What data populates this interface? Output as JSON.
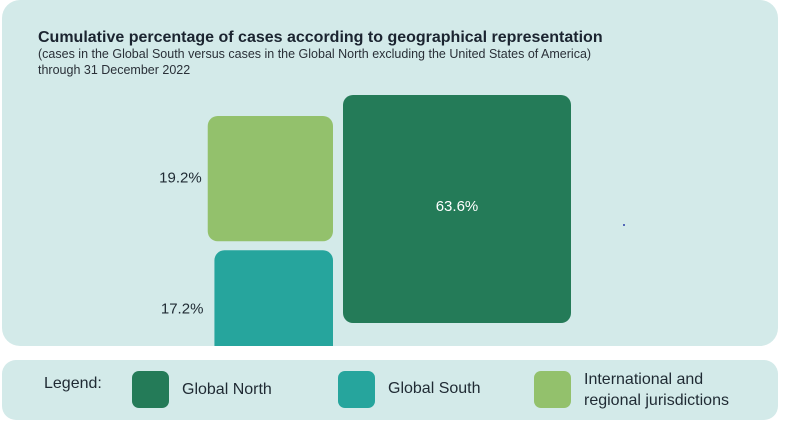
{
  "header": {
    "title": "Cumulative percentage of cases according to geographical representation",
    "subtitle_line1": "(cases in the Global South versus cases in the Global North excluding the United States of America)",
    "subtitle_line2": "through 31 December 2022"
  },
  "legend": {
    "title": "Legend:",
    "items": [
      {
        "label": "Global North"
      },
      {
        "label": "Global South"
      },
      {
        "label_line1": "International and",
        "label_line2": "regional jurisdictions"
      }
    ]
  },
  "chart_data": {
    "type": "area",
    "title": "Cumulative percentage of cases according to geographical representation",
    "subtitle": "(cases in the Global South versus cases in the Global North excluding the United States of America) through 31 December 2022",
    "unit": "%",
    "series": [
      {
        "name": "Global North",
        "value": 63.6,
        "label": "63.6%",
        "color": "#247b58"
      },
      {
        "name": "Global South",
        "value": 17.2,
        "label": "17.2%",
        "color": "#26a59d"
      },
      {
        "name": "International and regional jurisdictions",
        "value": 19.2,
        "label": "19.2%",
        "color": "#93c16c"
      }
    ]
  }
}
